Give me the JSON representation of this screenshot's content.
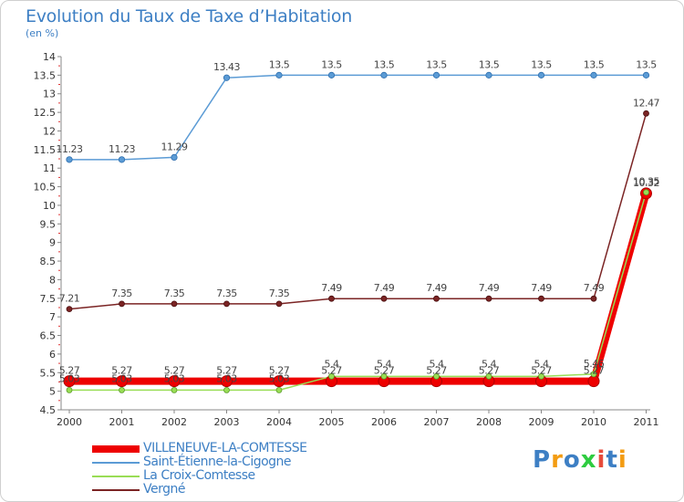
{
  "chart_data": {
    "type": "line",
    "title": "Evolution du Taux de Taxe d’Habitation",
    "subtitle": "(en %)",
    "x": [
      "2000",
      "2001",
      "2002",
      "2003",
      "2004",
      "2005",
      "2006",
      "2007",
      "2008",
      "2009",
      "2010",
      "2011"
    ],
    "ylim": [
      4.5,
      14
    ],
    "yticks": [
      "4.5",
      "5",
      "5.5",
      "6",
      "6.5",
      "7",
      "7.5",
      "8",
      "8.5",
      "9",
      "9.5",
      "10",
      "10.5",
      "11",
      "11.5",
      "12",
      "12.5",
      "13",
      "13.5",
      "14"
    ],
    "grid": false,
    "legend_position": "bottom-left",
    "series": [
      {
        "name": "Saint-Étienne-la-Cigogne",
        "color": "#5b9bd5",
        "values": [
          11.23,
          11.23,
          11.29,
          13.43,
          13.5,
          13.5,
          13.5,
          13.5,
          13.5,
          13.5,
          13.5,
          13.5
        ],
        "labels": [
          "11.23",
          "11.23",
          "11.29",
          "13.43",
          "13.5",
          "13.5",
          "13.5",
          "13.5",
          "13.5",
          "13.5",
          "13.5",
          "13.5"
        ]
      },
      {
        "name": "Vergné",
        "color": "#7b2424",
        "values": [
          7.21,
          7.35,
          7.35,
          7.35,
          7.35,
          7.49,
          7.49,
          7.49,
          7.49,
          7.49,
          7.49,
          12.47
        ],
        "labels": [
          "7.21",
          "7.35",
          "7.35",
          "7.35",
          "7.35",
          "7.49",
          "7.49",
          "7.49",
          "7.49",
          "7.49",
          "7.49",
          "12.47"
        ]
      },
      {
        "name": "La Croix-Comtesse",
        "color": "#99dd55",
        "values": [
          5.03,
          5.03,
          5.03,
          5.03,
          5.03,
          5.4,
          5.4,
          5.4,
          5.4,
          5.4,
          5.46,
          10.35
        ],
        "labels": [
          "5.03",
          "5.03",
          "5.03",
          "5.03",
          "5.03",
          "5.4",
          "5.4",
          "5.4",
          "5.4",
          "5.4",
          "5.46",
          "10.35"
        ]
      },
      {
        "name": "VILLENEUVE-LA-COMTESSE",
        "color": "#ee0000",
        "values": [
          5.27,
          5.27,
          5.27,
          5.27,
          5.27,
          5.27,
          5.27,
          5.27,
          5.27,
          5.27,
          5.27,
          10.32
        ],
        "labels": [
          "5.27",
          "5.27",
          "5.27",
          "5.27",
          "5.27",
          "5.27",
          "5.27",
          "5.27",
          "5.27",
          "5.27",
          "5.27",
          "10.32"
        ]
      }
    ]
  },
  "legend": [
    {
      "label": "VILLENEUVE-LA-COMTESSE",
      "color": "#ee0000",
      "thickness": "thick"
    },
    {
      "label": "Saint-Étienne-la-Cigogne",
      "color": "#5b9bd5",
      "thickness": "thin"
    },
    {
      "label": "La Croix-Comtesse",
      "color": "#99dd55",
      "thickness": "thin"
    },
    {
      "label": "Vergné",
      "color": "#7b2424",
      "thickness": "thin"
    }
  ],
  "logo": {
    "text": "Proxiti",
    "letters": [
      "P",
      "r",
      "o",
      "x",
      "i",
      "t",
      "i"
    ],
    "colors": [
      "#3d7fc4",
      "#f39c12",
      "#3d7fc4",
      "#2ecc40",
      "#e74c3c",
      "#3d7fc4",
      "#f39c12"
    ]
  }
}
